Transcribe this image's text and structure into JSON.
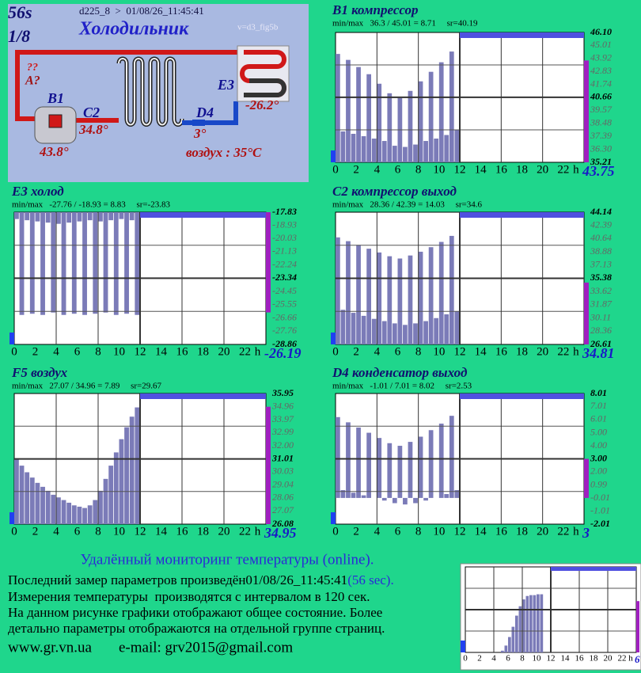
{
  "header": {
    "timer": "56s",
    "page": "1/8",
    "device": "d225_8  >  01/08/26_11:45:41",
    "title": "Холодильник",
    "version": "v=d3_fig5b"
  },
  "diagram": {
    "unknown": "??",
    "a": "A?",
    "b1": "B1",
    "c2": "C2",
    "c2_value": "34.8°",
    "b1_value": "43.8°",
    "d4": "D4",
    "d4_value": "3°",
    "e3": "E3",
    "e3_value": "-26.2°",
    "air": "воздух : 35°C"
  },
  "chart_data": [
    {
      "type": "bar",
      "title": "B1 компрессор",
      "stats": "min/max   36.3 / 45.01 = 8.71     sr=40.19",
      "color": "#7b7bb8",
      "x": [
        0,
        0.5,
        1,
        1.5,
        2,
        2.5,
        3,
        3.5,
        4,
        4.5,
        5,
        5.5,
        6,
        6.5,
        7,
        7.5,
        8,
        8.5,
        9,
        9.5,
        10,
        10.5,
        11,
        11.5
      ],
      "values": [
        44.3,
        37.8,
        43.8,
        37.6,
        43.2,
        37.4,
        42.6,
        37.2,
        41.8,
        37.0,
        41.0,
        36.6,
        40.6,
        36.5,
        41.2,
        36.7,
        42.0,
        37.0,
        42.8,
        37.2,
        43.6,
        37.5,
        44.5,
        37.9
      ],
      "xlim": [
        0,
        24
      ],
      "xticks": [
        0,
        2,
        4,
        6,
        8,
        10,
        12,
        14,
        16,
        18,
        20,
        22
      ],
      "x_unit": "h",
      "ylim": [
        35.21,
        46.1
      ],
      "yticks": [
        {
          "value": 46.1,
          "label": "46.10"
        },
        {
          "value": 45.01,
          "label": "45.01"
        },
        {
          "value": 43.92,
          "label": "43.92"
        },
        {
          "value": 42.83,
          "label": "42.83"
        },
        {
          "value": 41.74,
          "label": "41.74"
        },
        {
          "value": 40.66,
          "label": "40.66"
        },
        {
          "value": 39.57,
          "label": "39.57"
        },
        {
          "value": 38.48,
          "label": "38.48"
        },
        {
          "value": 37.39,
          "label": "37.39"
        },
        {
          "value": 36.3,
          "label": "36.30"
        },
        {
          "value": 35.21,
          "label": "35.21"
        }
      ],
      "current": 43.75
    },
    {
      "type": "bar",
      "title": "E3 холод",
      "stats": "min/max   -27.76 / -18.93 = 8.83     sr=-23.83",
      "color": "#7b7bb8",
      "x": [
        0,
        0.5,
        1,
        1.5,
        2,
        2.5,
        3,
        3.5,
        4,
        4.5,
        5,
        5.5,
        6,
        6.5,
        7,
        7.5,
        8,
        8.5,
        9,
        9.5,
        10,
        10.5,
        11,
        11.5
      ],
      "values": [
        -18.4,
        -26.4,
        -18.5,
        -26.3,
        -18.6,
        -26.4,
        -18.7,
        -26.2,
        -18.8,
        -26.4,
        -18.7,
        -26.3,
        -18.6,
        -26.4,
        -18.5,
        -26.3,
        -18.6,
        -26.2,
        -18.5,
        -26.4,
        -18.4,
        -26.3,
        -18.5,
        -26.4
      ],
      "xlim": [
        0,
        24
      ],
      "xticks": [
        0,
        2,
        4,
        6,
        8,
        10,
        12,
        14,
        16,
        18,
        20,
        22
      ],
      "x_unit": "h",
      "ylim": [
        -28.86,
        -17.83
      ],
      "yticks": [
        {
          "value": -17.83,
          "label": "-17.83"
        },
        {
          "value": -18.93,
          "label": "-18.93"
        },
        {
          "value": -20.03,
          "label": "-20.03"
        },
        {
          "value": -21.13,
          "label": "-21.13"
        },
        {
          "value": -22.24,
          "label": "-22.24"
        },
        {
          "value": -23.34,
          "label": "-23.34"
        },
        {
          "value": -24.45,
          "label": "-24.45"
        },
        {
          "value": -25.55,
          "label": "-25.55"
        },
        {
          "value": -26.66,
          "label": "-26.66"
        },
        {
          "value": -27.76,
          "label": "-27.76"
        },
        {
          "value": -28.86,
          "label": "-28.86"
        }
      ],
      "current": -26.19
    },
    {
      "type": "bar",
      "title": "C2 компрессор выход",
      "stats": "min/max   28.36 / 42.39 = 14.03     sr=34.6",
      "color": "#7b7bb8",
      "x": [
        0,
        0.5,
        1,
        1.5,
        2,
        2.5,
        3,
        3.5,
        4,
        4.5,
        5,
        5.5,
        6,
        6.5,
        7,
        7.5,
        8,
        8.5,
        9,
        9.5,
        10,
        10.5,
        11,
        11.5
      ],
      "values": [
        40.8,
        31.2,
        40.3,
        30.8,
        39.8,
        30.4,
        39.3,
        30.0,
        38.8,
        29.7,
        38.3,
        29.4,
        38.0,
        29.2,
        38.4,
        29.4,
        38.9,
        29.7,
        39.5,
        30.1,
        40.2,
        30.6,
        41.0,
        31.0
      ],
      "xlim": [
        0,
        24
      ],
      "xticks": [
        0,
        2,
        4,
        6,
        8,
        10,
        12,
        14,
        16,
        18,
        20,
        22
      ],
      "x_unit": "h",
      "ylim": [
        26.61,
        44.14
      ],
      "yticks": [
        {
          "value": 44.14,
          "label": "44.14"
        },
        {
          "value": 42.39,
          "label": "42.39"
        },
        {
          "value": 40.64,
          "label": "40.64"
        },
        {
          "value": 38.88,
          "label": "38.88"
        },
        {
          "value": 37.13,
          "label": "37.13"
        },
        {
          "value": 35.38,
          "label": "35.38"
        },
        {
          "value": 33.62,
          "label": "33.62"
        },
        {
          "value": 31.87,
          "label": "31.87"
        },
        {
          "value": 30.11,
          "label": "30.11"
        },
        {
          "value": 28.36,
          "label": "28.36"
        },
        {
          "value": 26.61,
          "label": "26.61"
        }
      ],
      "current": 34.81
    },
    {
      "type": "bar",
      "title": "F5 воздух",
      "stats": "min/max   27.07 / 34.96 = 7.89     sr=29.67",
      "color": "#7b7bb8",
      "x": [
        0,
        0.5,
        1,
        1.5,
        2,
        2.5,
        3,
        3.5,
        4,
        4.5,
        5,
        5.5,
        6,
        6.5,
        7,
        7.5,
        8,
        8.5,
        9,
        9.5,
        10,
        10.5,
        11,
        11.5
      ],
      "values": [
        31.0,
        30.5,
        30.0,
        29.6,
        29.2,
        28.9,
        28.6,
        28.3,
        28.1,
        27.9,
        27.7,
        27.5,
        27.4,
        27.3,
        27.5,
        27.9,
        28.6,
        29.5,
        30.5,
        31.5,
        32.5,
        33.4,
        34.2,
        34.9
      ],
      "xlim": [
        0,
        24
      ],
      "xticks": [
        0,
        2,
        4,
        6,
        8,
        10,
        12,
        14,
        16,
        18,
        20,
        22
      ],
      "x_unit": "h",
      "ylim": [
        26.08,
        35.95
      ],
      "yticks": [
        {
          "value": 35.95,
          "label": "35.95"
        },
        {
          "value": 34.96,
          "label": "34.96"
        },
        {
          "value": 33.97,
          "label": "33.97"
        },
        {
          "value": 32.99,
          "label": "32.99"
        },
        {
          "value": 32.0,
          "label": "32.00"
        },
        {
          "value": 31.01,
          "label": "31.01"
        },
        {
          "value": 30.03,
          "label": "30.03"
        },
        {
          "value": 29.04,
          "label": "29.04"
        },
        {
          "value": 28.06,
          "label": "28.06"
        },
        {
          "value": 27.07,
          "label": "27.07"
        },
        {
          "value": 26.08,
          "label": "26.08"
        }
      ],
      "current": 34.95
    },
    {
      "type": "bar",
      "title": "D4 конденсатор выход",
      "stats": "min/max   -1.01 / 7.01 = 8.02     sr=2.53",
      "color": "#7b7bb8",
      "x": [
        0,
        0.5,
        1,
        1.5,
        2,
        2.5,
        3,
        3.5,
        4,
        4.5,
        5,
        5.5,
        6,
        6.5,
        7,
        7.5,
        8,
        8.5,
        9,
        9.5,
        10,
        10.5,
        11,
        11.5
      ],
      "values": [
        6.2,
        0.6,
        5.8,
        0.4,
        5.4,
        0.2,
        5.0,
        0.0,
        4.6,
        -0.2,
        4.2,
        -0.4,
        4.0,
        -0.5,
        4.3,
        -0.4,
        4.7,
        -0.2,
        5.2,
        0.0,
        5.7,
        0.3,
        6.3,
        0.6
      ],
      "xlim": [
        0,
        24
      ],
      "xticks": [
        0,
        2,
        4,
        6,
        8,
        10,
        12,
        14,
        16,
        18,
        20,
        22
      ],
      "x_unit": "h",
      "ylim": [
        -2.01,
        8.01
      ],
      "yticks": [
        {
          "value": 8.01,
          "label": "8.01"
        },
        {
          "value": 7.01,
          "label": "7.01"
        },
        {
          "value": 6.01,
          "label": "6.01"
        },
        {
          "value": 5.0,
          "label": "5.00"
        },
        {
          "value": 4.0,
          "label": "4.00"
        },
        {
          "value": 3.0,
          "label": "3.00"
        },
        {
          "value": 2.0,
          "label": "2.00"
        },
        {
          "value": 0.99,
          "label": "0.99"
        },
        {
          "value": -0.01,
          "label": "-0.01"
        },
        {
          "value": -1.01,
          "label": "-1.01"
        },
        {
          "value": -2.01,
          "label": "-2.01"
        }
      ],
      "current": 3
    },
    {
      "type": "bar",
      "color": "#7b7bb8",
      "x": [
        0,
        0.5,
        1,
        1.5,
        2,
        2.5,
        3,
        3.5,
        4,
        4.5,
        5,
        5.5,
        6,
        6.5,
        7,
        7.5,
        8,
        8.5,
        9,
        9.5,
        10,
        10.5,
        11,
        11.5
      ],
      "values": [
        0,
        0,
        0,
        0,
        0,
        0,
        0,
        0,
        0,
        0,
        0.2,
        0.8,
        1.8,
        3.0,
        4.3,
        5.4,
        6.2,
        6.6,
        6.7,
        6.7,
        6.8,
        6.8,
        0,
        0
      ],
      "xlim": [
        0,
        24
      ],
      "xticks": [
        0,
        2,
        4,
        6,
        8,
        10,
        12,
        14,
        16,
        18,
        20,
        22
      ],
      "x_unit": "h",
      "ylim": [
        0,
        10
      ],
      "current": 6
    }
  ],
  "footer": {
    "heading": "Удалённый мониторинг температуры (online).",
    "line1": "Последний замер параметров произведён",
    "timestamp": "01/08/26_11:45:41",
    "age": "(56 sec).",
    "line2": "Измерения температуры  производятся с интервалом в 120 сек.",
    "line3": "На данном рисунке графики отображают общее состояние. Более",
    "line4": "детально параметры отображаются на отдельной группе страниц.",
    "site": "www.gr.vn.ua",
    "email": "e-mail: grv2015@gmail.com"
  }
}
